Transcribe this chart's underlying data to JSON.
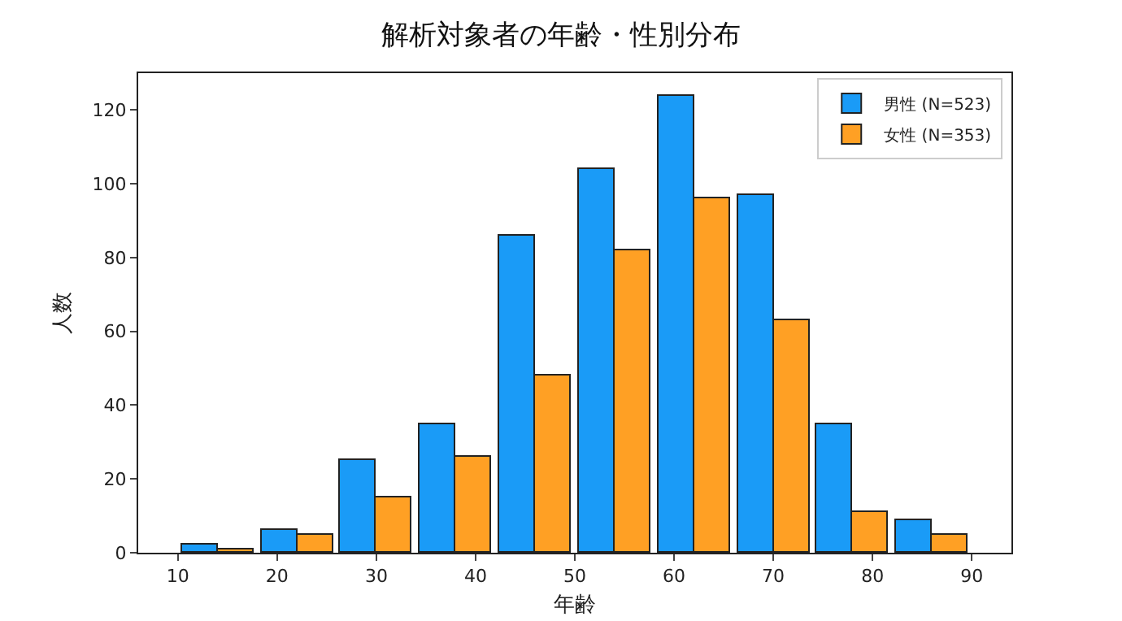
{
  "chart_data": {
    "type": "histogram",
    "title": "解析対象者の年齢・性別分布",
    "xlabel": "年齢",
    "ylabel": "人数",
    "bins": [
      10,
      18,
      26,
      34,
      42,
      50,
      58,
      66,
      74,
      82,
      90
    ],
    "series": [
      {
        "name": "男性 (N=523)",
        "color": "#1a9bf7",
        "values": [
          2,
          6,
          25,
          35,
          86,
          104,
          124,
          97,
          35,
          9
        ]
      },
      {
        "name": "女性 (N=353)",
        "color": "#ffa024",
        "values": [
          1,
          5,
          15,
          26,
          48,
          82,
          96,
          63,
          11,
          5
        ]
      }
    ],
    "xlim": [
      6,
      94
    ],
    "xticks": [
      10,
      20,
      30,
      40,
      50,
      60,
      70,
      80,
      90
    ],
    "ylim": [
      0,
      130
    ],
    "yticks": [
      0,
      20,
      40,
      60,
      80,
      100,
      120
    ],
    "grid": false,
    "legend": "top right"
  }
}
